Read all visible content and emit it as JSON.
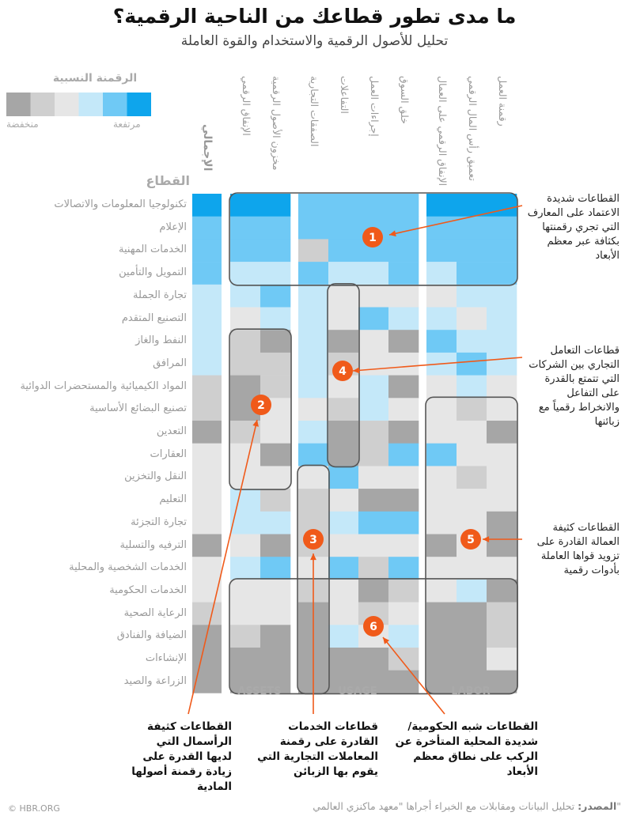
{
  "title": "ما مدى تطور قطاعك من الناحية الرقمية؟",
  "subtitle": "تحليل للأصول الرقمية والاستخدام والقوة العاملة",
  "legend": {
    "title": "الرقمنة النسبية",
    "low_label": "منخفضة",
    "high_label": "مرتفعة",
    "colors": [
      "#a6a6a6",
      "#cfcfcf",
      "#e6e6e6",
      "#c4e8f9",
      "#6fc9f5",
      "#0ea5ec"
    ]
  },
  "sector_header": "القطاع",
  "total_header": "الإجمالي",
  "chart_data": {
    "type": "heatmap",
    "columns": [
      "الإنفاق الرقمي",
      "مخزون الأصول الرقمية",
      "الصفقات التجارية",
      "التفاعلات",
      "إجراءات العمل",
      "خلق السوق",
      "الإنفاق الرقمي على العمال",
      "تعميق رأس المال الرقمي",
      "رقمنة العمل"
    ],
    "column_groups": [
      {
        "name": "ASSETS",
        "columns": [
          0,
          1
        ]
      },
      {
        "name": "USAGE",
        "columns": [
          2,
          3,
          4,
          5
        ]
      },
      {
        "name": "LABOR",
        "columns": [
          6,
          7,
          8
        ]
      }
    ],
    "color_scale": "levels 0 (lowest) to 5 (highest)",
    "rows": [
      {
        "sector": "تكنولوجيا المعلومات والاتصالات",
        "total": 5,
        "values": [
          5,
          5,
          4,
          4,
          4,
          4,
          5,
          5,
          5
        ]
      },
      {
        "sector": "الإعلام",
        "total": 4,
        "values": [
          4,
          4,
          4,
          4,
          4,
          4,
          4,
          4,
          4
        ]
      },
      {
        "sector": "الخدمات المهنية",
        "total": 4,
        "values": [
          4,
          4,
          1,
          4,
          4,
          4,
          4,
          4,
          4
        ]
      },
      {
        "sector": "التمويل والتأمين",
        "total": 4,
        "values": [
          3,
          3,
          4,
          3,
          3,
          4,
          3,
          4,
          4
        ]
      },
      {
        "sector": "تجارة الجملة",
        "total": 3,
        "values": [
          3,
          4,
          3,
          2,
          2,
          2,
          2,
          3,
          3
        ]
      },
      {
        "sector": "التصنيع المتقدم",
        "total": 3,
        "values": [
          2,
          3,
          3,
          2,
          4,
          3,
          3,
          2,
          3
        ]
      },
      {
        "sector": "النفط والغاز",
        "total": 3,
        "values": [
          1,
          0,
          3,
          0,
          2,
          0,
          4,
          3,
          3
        ]
      },
      {
        "sector": "المرافق",
        "total": 3,
        "values": [
          1,
          1,
          3,
          1,
          2,
          2,
          3,
          4,
          3
        ]
      },
      {
        "sector": "المواد الكيميائية والمستحضرات الدوائية",
        "total": 1,
        "values": [
          0,
          1,
          3,
          2,
          3,
          0,
          2,
          3,
          2
        ]
      },
      {
        "sector": "تصنيع البضائع الأساسية",
        "total": 1,
        "values": [
          0,
          2,
          2,
          1,
          3,
          2,
          2,
          1,
          2
        ]
      },
      {
        "sector": "التعدين",
        "total": 0,
        "values": [
          1,
          2,
          3,
          0,
          1,
          0,
          2,
          2,
          0
        ]
      },
      {
        "sector": "العقارات",
        "total": 2,
        "values": [
          2,
          0,
          4,
          0,
          1,
          4,
          4,
          2,
          2
        ]
      },
      {
        "sector": "النقل والتخزين",
        "total": 2,
        "values": [
          2,
          2,
          2,
          4,
          2,
          2,
          2,
          1,
          2
        ]
      },
      {
        "sector": "التعليم",
        "total": 2,
        "values": [
          3,
          1,
          1,
          2,
          0,
          0,
          2,
          2,
          2
        ]
      },
      {
        "sector": "تجارة التجزئة",
        "total": 2,
        "values": [
          3,
          3,
          1,
          3,
          4,
          4,
          2,
          2,
          0
        ]
      },
      {
        "sector": "الترفيه والتسلية",
        "total": 0,
        "values": [
          2,
          0,
          1,
          2,
          2,
          2,
          0,
          2,
          0
        ]
      },
      {
        "sector": "الخدمات الشخصية والمحلية",
        "total": 2,
        "values": [
          3,
          4,
          2,
          4,
          1,
          4,
          2,
          2,
          2
        ]
      },
      {
        "sector": "الخدمات الحكومية",
        "total": 2,
        "values": [
          2,
          2,
          1,
          2,
          0,
          1,
          2,
          3,
          0
        ]
      },
      {
        "sector": "الرعاية الصحية",
        "total": 1,
        "values": [
          2,
          2,
          0,
          2,
          1,
          2,
          0,
          0,
          1
        ]
      },
      {
        "sector": "الضيافة والفنادق",
        "total": 0,
        "values": [
          1,
          0,
          0,
          3,
          2,
          3,
          0,
          0,
          1
        ]
      },
      {
        "sector": "الإنشاءات",
        "total": 0,
        "values": [
          0,
          0,
          0,
          0,
          0,
          1,
          0,
          0,
          2
        ]
      },
      {
        "sector": "الزراعة والصيد",
        "total": 0,
        "values": [
          0,
          0,
          0,
          0,
          0,
          0,
          0,
          0,
          0
        ]
      }
    ]
  },
  "markers": [
    {
      "number": "1",
      "text": "القطاعات شديدة الاعتماد على المعارف التي تجري رقمنتها بكثافة عبر معظم الأبعاد"
    },
    {
      "number": "2",
      "text": "القطاعات كثيفة الرأسمال التي لديها القدرة على زيادة رقمنة أصولها المادية"
    },
    {
      "number": "3",
      "text": "قطاعات الخدمات القادرة على رقمنة المعاملات التجارية التي يقوم بها الزبائن"
    },
    {
      "number": "4",
      "text": "قطاعات التعامل التجاري بين الشركات التي تتمتع بالقدرة على التفاعل والانخراط رقمياً مع زبائنها"
    },
    {
      "number": "5",
      "text": "القطاعات كثيفة العمالة القادرة على تزويد قواها العاملة بأدوات رقمية"
    },
    {
      "number": "6",
      "text": "القطاعات شبه الحكومية/ شديدة المحلية المتأخرة عن الركب على نطاق معظم الأبعاد"
    }
  ],
  "source_label": "المصدر:",
  "source_text": "تحليل البيانات ومقابلات مع الخبراء أجراها \"معهد ماكنزي العالمي\"",
  "credit": "© HBR.ORG"
}
